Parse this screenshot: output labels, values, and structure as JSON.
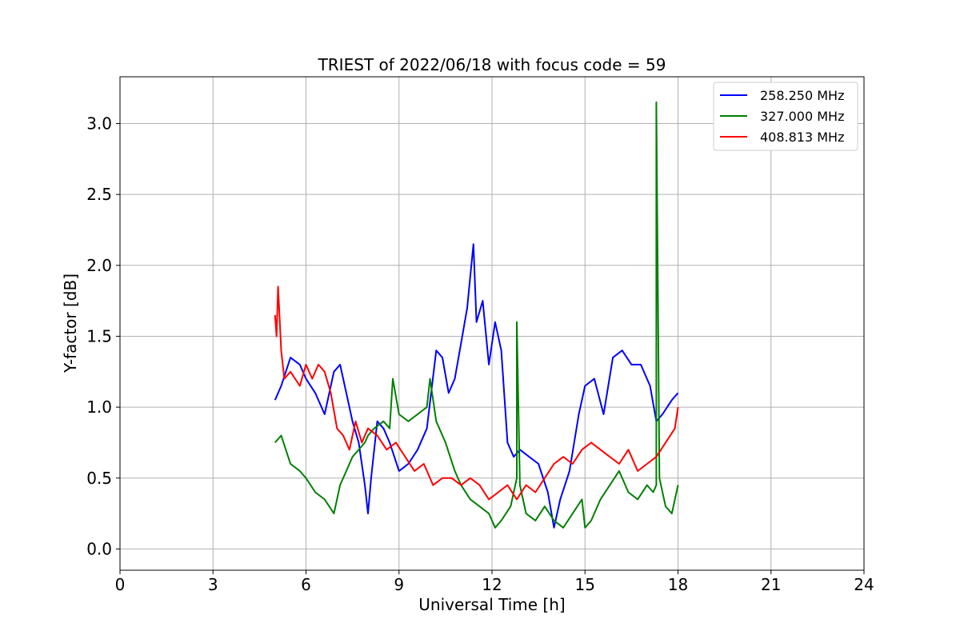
{
  "chart_data": {
    "type": "line",
    "title": "TRIEST of 2022/06/18 with focus code = 59",
    "xlabel": "Universal Time [h]",
    "ylabel": "Y-factor [dB]",
    "xlim": [
      0,
      24
    ],
    "ylim": [
      -0.15,
      3.33
    ],
    "xticks": [
      0,
      3,
      6,
      9,
      12,
      15,
      18,
      21,
      24
    ],
    "yticks": [
      0.0,
      0.5,
      1.0,
      1.5,
      2.0,
      2.5,
      3.0
    ],
    "xtick_labels": [
      "0",
      "3",
      "6",
      "9",
      "12",
      "15",
      "18",
      "21",
      "24"
    ],
    "ytick_labels": [
      "0.0",
      "0.5",
      "1.0",
      "1.5",
      "2.0",
      "2.5",
      "3.0"
    ],
    "grid": true,
    "legend_position": "top-right",
    "series": [
      {
        "name": "258.250 MHz",
        "color": "#0000ff",
        "x": [
          5.0,
          5.2,
          5.5,
          5.8,
          6.0,
          6.3,
          6.6,
          6.9,
          7.1,
          7.3,
          7.5,
          7.7,
          7.9,
          8.0,
          8.1,
          8.3,
          8.5,
          8.7,
          9.0,
          9.3,
          9.6,
          9.9,
          10.2,
          10.4,
          10.6,
          10.8,
          11.0,
          11.2,
          11.4,
          11.5,
          11.7,
          11.9,
          12.1,
          12.3,
          12.5,
          12.7,
          12.9,
          13.2,
          13.5,
          13.8,
          14.0,
          14.2,
          14.5,
          14.8,
          15.0,
          15.3,
          15.6,
          15.9,
          16.2,
          16.5,
          16.8,
          17.1,
          17.3,
          17.5,
          17.8,
          18.0
        ],
        "y": [
          1.05,
          1.15,
          1.35,
          1.3,
          1.2,
          1.1,
          0.95,
          1.25,
          1.3,
          1.1,
          0.9,
          0.75,
          0.45,
          0.25,
          0.5,
          0.9,
          0.85,
          0.75,
          0.55,
          0.6,
          0.7,
          0.85,
          1.4,
          1.35,
          1.1,
          1.2,
          1.45,
          1.7,
          2.15,
          1.6,
          1.75,
          1.3,
          1.6,
          1.4,
          0.75,
          0.65,
          0.7,
          0.65,
          0.6,
          0.4,
          0.15,
          0.35,
          0.55,
          0.95,
          1.15,
          1.2,
          0.95,
          1.35,
          1.4,
          1.3,
          1.3,
          1.15,
          0.9,
          0.95,
          1.05,
          1.1
        ]
      },
      {
        "name": "327.000 MHz",
        "color": "#008000",
        "x": [
          5.0,
          5.2,
          5.5,
          5.8,
          6.0,
          6.3,
          6.6,
          6.9,
          7.1,
          7.3,
          7.5,
          7.7,
          7.9,
          8.0,
          8.2,
          8.5,
          8.7,
          8.8,
          9.0,
          9.3,
          9.6,
          9.9,
          10.0,
          10.2,
          10.5,
          10.8,
          11.0,
          11.3,
          11.6,
          11.9,
          12.1,
          12.3,
          12.6,
          12.8,
          12.8,
          12.9,
          13.1,
          13.4,
          13.7,
          14.0,
          14.3,
          14.6,
          14.9,
          15.0,
          15.2,
          15.5,
          15.8,
          16.1,
          16.4,
          16.7,
          17.0,
          17.2,
          17.3,
          17.3,
          17.4,
          17.6,
          17.8,
          18.0
        ],
        "y": [
          0.75,
          0.8,
          0.6,
          0.55,
          0.5,
          0.4,
          0.35,
          0.25,
          0.45,
          0.55,
          0.65,
          0.7,
          0.75,
          0.8,
          0.85,
          0.9,
          0.85,
          1.2,
          0.95,
          0.9,
          0.95,
          1.0,
          1.2,
          0.9,
          0.75,
          0.55,
          0.45,
          0.35,
          0.3,
          0.25,
          0.15,
          0.2,
          0.3,
          0.5,
          1.6,
          0.45,
          0.25,
          0.2,
          0.3,
          0.2,
          0.15,
          0.25,
          0.35,
          0.15,
          0.2,
          0.35,
          0.45,
          0.55,
          0.4,
          0.35,
          0.45,
          0.4,
          0.45,
          3.15,
          0.5,
          0.3,
          0.25,
          0.45
        ]
      },
      {
        "name": "408.813 MHz",
        "color": "#ff0000",
        "x": [
          5.0,
          5.05,
          5.1,
          5.2,
          5.3,
          5.5,
          5.8,
          6.0,
          6.2,
          6.4,
          6.6,
          6.8,
          7.0,
          7.2,
          7.4,
          7.6,
          7.8,
          8.0,
          8.3,
          8.6,
          8.9,
          9.2,
          9.5,
          9.8,
          10.1,
          10.4,
          10.7,
          11.0,
          11.3,
          11.6,
          11.9,
          12.2,
          12.5,
          12.8,
          13.1,
          13.4,
          13.7,
          14.0,
          14.3,
          14.6,
          14.9,
          15.2,
          15.5,
          15.8,
          16.1,
          16.4,
          16.7,
          17.0,
          17.3,
          17.6,
          17.9,
          18.0
        ],
        "y": [
          1.65,
          1.5,
          1.85,
          1.4,
          1.2,
          1.25,
          1.15,
          1.3,
          1.2,
          1.3,
          1.25,
          1.1,
          0.85,
          0.8,
          0.7,
          0.9,
          0.75,
          0.85,
          0.8,
          0.7,
          0.75,
          0.65,
          0.55,
          0.6,
          0.45,
          0.5,
          0.5,
          0.45,
          0.5,
          0.45,
          0.35,
          0.4,
          0.45,
          0.35,
          0.45,
          0.4,
          0.5,
          0.6,
          0.65,
          0.6,
          0.7,
          0.75,
          0.7,
          0.65,
          0.6,
          0.7,
          0.55,
          0.6,
          0.65,
          0.75,
          0.85,
          1.0
        ]
      }
    ]
  }
}
